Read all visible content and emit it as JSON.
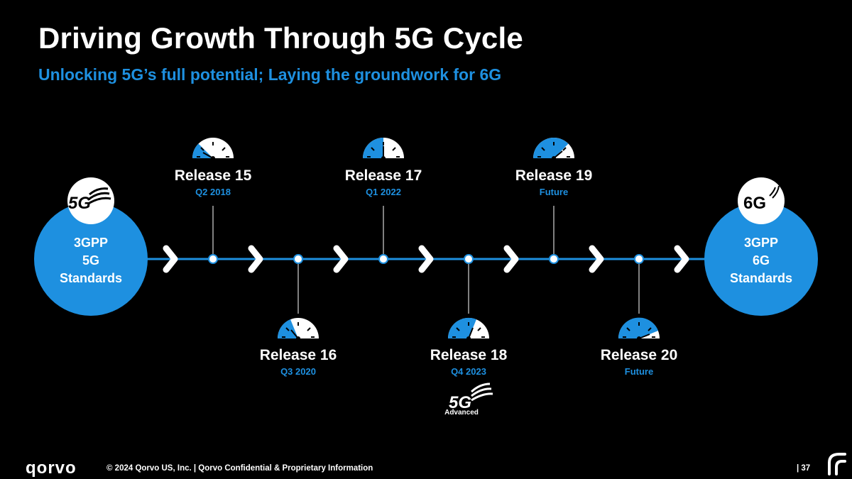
{
  "header": {
    "title": "Driving Growth Through 5G Cycle",
    "subtitle": "Unlocking 5G’s full potential; Laying the groundwork for 6G"
  },
  "start_node": {
    "badge": "5G",
    "lines": [
      "3GPP",
      "5G",
      "Standards"
    ]
  },
  "end_node": {
    "badge": "6G",
    "lines": [
      "3GPP",
      "6G",
      "Standards"
    ]
  },
  "releases": [
    {
      "label": "Release 15",
      "date": "Q2 2018",
      "position": "top"
    },
    {
      "label": "Release 16",
      "date": "Q3 2020",
      "position": "bottom"
    },
    {
      "label": "Release 17",
      "date": "Q1 2022",
      "position": "top"
    },
    {
      "label": "Release 18",
      "date": "Q4 2023",
      "position": "bottom"
    },
    {
      "label": "Release 19",
      "date": "Future",
      "position": "top"
    },
    {
      "label": "Release 20",
      "date": "Future",
      "position": "bottom"
    }
  ],
  "advanced_badge": {
    "mark": "5G",
    "caption": "Advanced"
  },
  "footer": {
    "logo": "qorvo",
    "copyright": "© 2024 Qorvo US, Inc. | Qorvo Confidential & Proprietary Information",
    "page": "| 37"
  },
  "colors": {
    "accent": "#1e90e0",
    "background": "#000000",
    "text": "#ffffff"
  }
}
